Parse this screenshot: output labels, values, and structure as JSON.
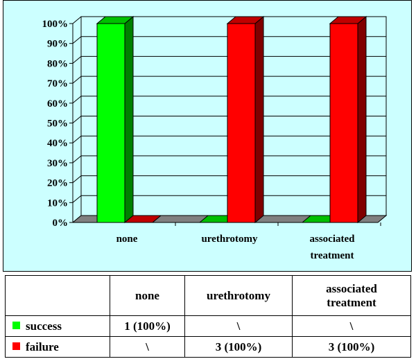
{
  "chart_data": {
    "type": "bar",
    "categories": [
      "none",
      "urethrotomy",
      "associated treatment"
    ],
    "category_lines": [
      [
        "none"
      ],
      [
        "urethrotomy"
      ],
      [
        "associated",
        "treatment"
      ]
    ],
    "series": [
      {
        "name": "success",
        "color": "#00ff00",
        "values": [
          100,
          0,
          0
        ]
      },
      {
        "name": "failure",
        "color": "#ff0000",
        "values": [
          0,
          100,
          100
        ]
      }
    ],
    "ylim": [
      0,
      100
    ],
    "yticks": [
      "0%",
      "10%",
      "20%",
      "30%",
      "40%",
      "50%",
      "60%",
      "70%",
      "80%",
      "90%",
      "100%"
    ],
    "grid": true,
    "three_d": true
  },
  "table": {
    "header": [
      "",
      "none",
      "urethrotomy",
      "associated treatment"
    ],
    "header_lines": [
      [
        ""
      ],
      [
        "none"
      ],
      [
        "urethrotomy"
      ],
      [
        "associated",
        "treatment"
      ]
    ],
    "rows": [
      {
        "label": "success",
        "color": "#00ff00",
        "cells": [
          "1 (100%)",
          "\\",
          "\\"
        ]
      },
      {
        "label": "failure",
        "color": "#ff0000",
        "cells": [
          "\\",
          "3 (100%)",
          "3 (100%)"
        ]
      }
    ]
  }
}
